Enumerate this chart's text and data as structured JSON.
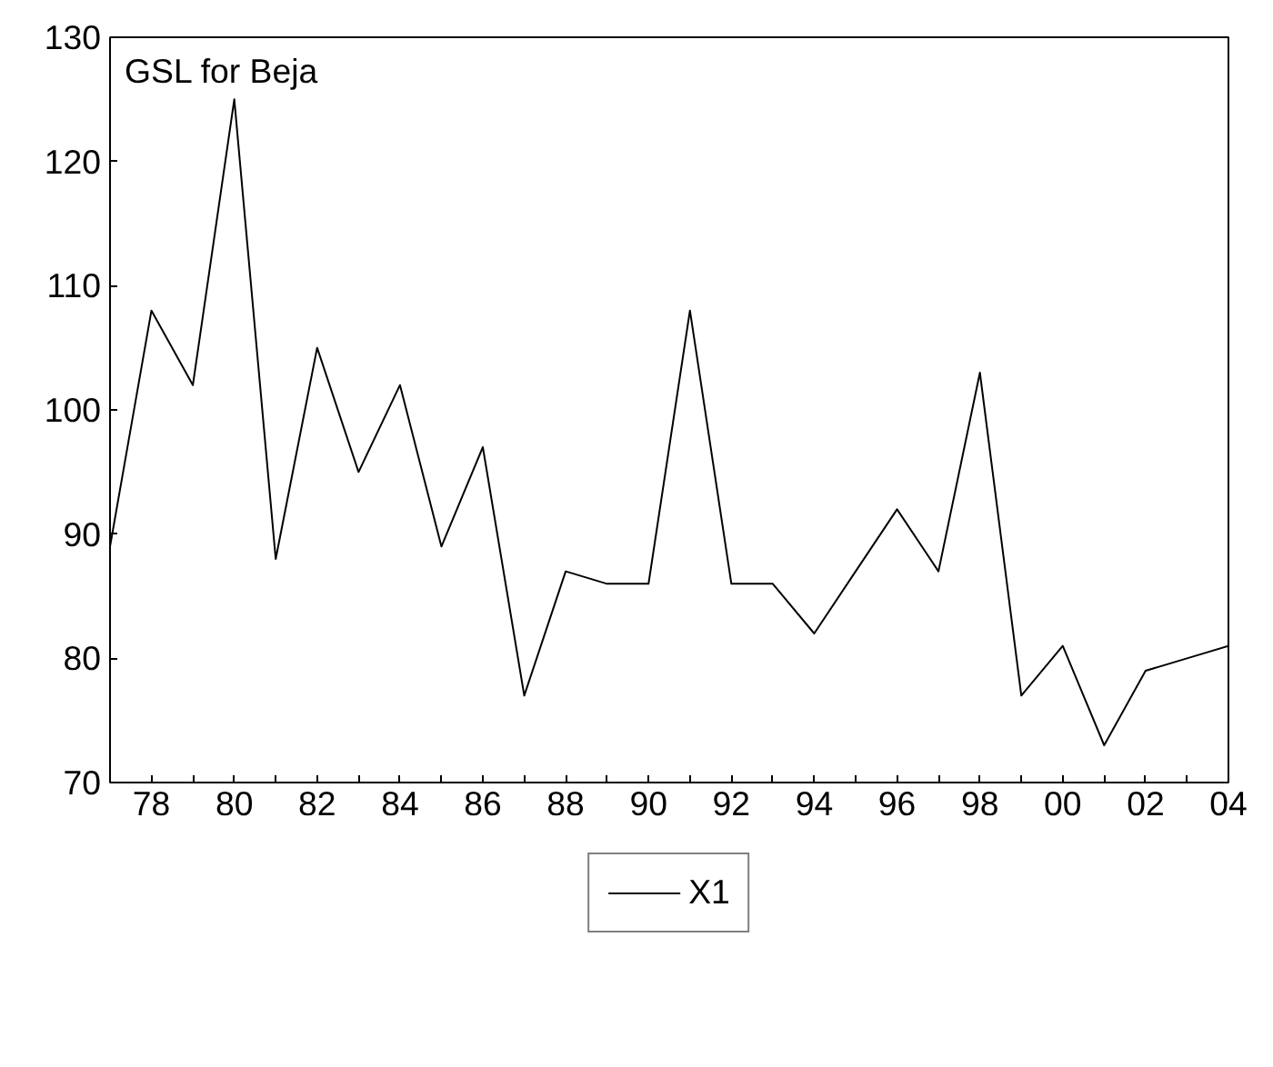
{
  "chart_data": {
    "type": "line",
    "title": "GSL for Beja",
    "x": [
      1977,
      1978,
      1979,
      1980,
      1981,
      1982,
      1983,
      1984,
      1985,
      1986,
      1987,
      1988,
      1989,
      1990,
      1991,
      1992,
      1993,
      1994,
      1995,
      1996,
      1997,
      1998,
      1999,
      2000,
      2001,
      2002,
      2003,
      2004
    ],
    "series": [
      {
        "name": "X1",
        "color": "#000000",
        "values": [
          89,
          108,
          102,
          125,
          88,
          105,
          95,
          102,
          89,
          97,
          77,
          87,
          86,
          86,
          108,
          86,
          86,
          82,
          87,
          92,
          87,
          103,
          77,
          81,
          73,
          79,
          80,
          81
        ]
      }
    ],
    "xlim": [
      1977,
      2004
    ],
    "xticks": [
      {
        "value": 1977,
        "label": null
      },
      {
        "value": 1978,
        "label": "78"
      },
      {
        "value": 1979,
        "label": null
      },
      {
        "value": 1980,
        "label": "80"
      },
      {
        "value": 1981,
        "label": null
      },
      {
        "value": 1982,
        "label": "82"
      },
      {
        "value": 1983,
        "label": null
      },
      {
        "value": 1984,
        "label": "84"
      },
      {
        "value": 1985,
        "label": null
      },
      {
        "value": 1986,
        "label": "86"
      },
      {
        "value": 1987,
        "label": null
      },
      {
        "value": 1988,
        "label": "88"
      },
      {
        "value": 1989,
        "label": null
      },
      {
        "value": 1990,
        "label": "90"
      },
      {
        "value": 1991,
        "label": null
      },
      {
        "value": 1992,
        "label": "92"
      },
      {
        "value": 1993,
        "label": null
      },
      {
        "value": 1994,
        "label": "94"
      },
      {
        "value": 1995,
        "label": null
      },
      {
        "value": 1996,
        "label": "96"
      },
      {
        "value": 1997,
        "label": null
      },
      {
        "value": 1998,
        "label": "98"
      },
      {
        "value": 1999,
        "label": null
      },
      {
        "value": 2000,
        "label": "00"
      },
      {
        "value": 2001,
        "label": null
      },
      {
        "value": 2002,
        "label": "02"
      },
      {
        "value": 2003,
        "label": null
      },
      {
        "value": 2004,
        "label": "04"
      }
    ],
    "ylim": [
      70,
      130
    ],
    "yticks": [
      70,
      80,
      90,
      100,
      110,
      120,
      130
    ],
    "grid": false,
    "legend": "bottom",
    "line_style": "solid",
    "marker": "none"
  }
}
